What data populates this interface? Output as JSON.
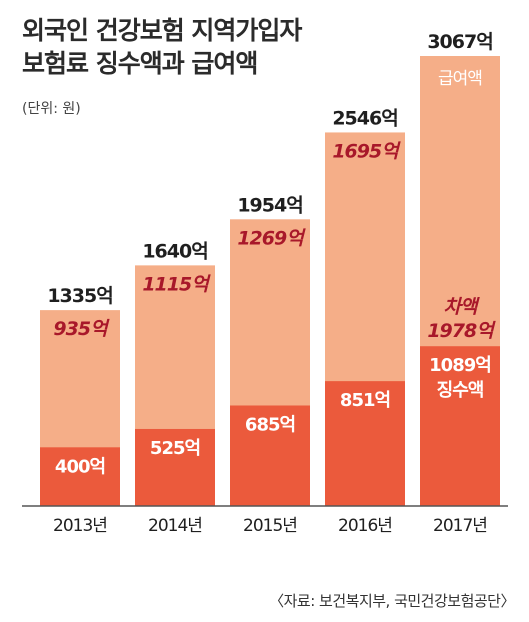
{
  "header": {
    "title_line1": "외국인 건강보험 지역가입자",
    "title_line2": "보험료 징수액과 급여액",
    "unit": "(단위: 원)"
  },
  "source": "〈자료: 보건복지부, 국민건강보험공단〉",
  "colors": {
    "benefit": "#f5ae88",
    "collection": "#eb5a3c",
    "difference_text": "#a8182a",
    "label_dark": "#1f1f1f",
    "label_light": "#ffffff",
    "axis": "#555555"
  },
  "chart_data": {
    "type": "bar",
    "categories": [
      "2013년",
      "2014년",
      "2015년",
      "2016년",
      "2017년"
    ],
    "series": [
      {
        "name": "급여액",
        "values": [
          1335,
          1640,
          1954,
          2546,
          3067
        ],
        "labels": [
          "1335억",
          "1640억",
          "1954억",
          "2546억",
          "3067억"
        ]
      },
      {
        "name": "징수액",
        "values": [
          400,
          525,
          685,
          851,
          1089
        ],
        "labels": [
          "400억",
          "525억",
          "685억",
          "851억",
          "1089억"
        ]
      },
      {
        "name": "차액",
        "values": [
          935,
          1115,
          1269,
          1695,
          1978
        ],
        "labels": [
          "935억",
          "1115억",
          "1269억",
          "1695억",
          "1978억"
        ]
      }
    ],
    "annotations": {
      "benefit_label": "급여액",
      "difference_label": "차액",
      "collection_label": "징수액"
    },
    "ylim": [
      0,
      3067
    ],
    "grid": false
  }
}
